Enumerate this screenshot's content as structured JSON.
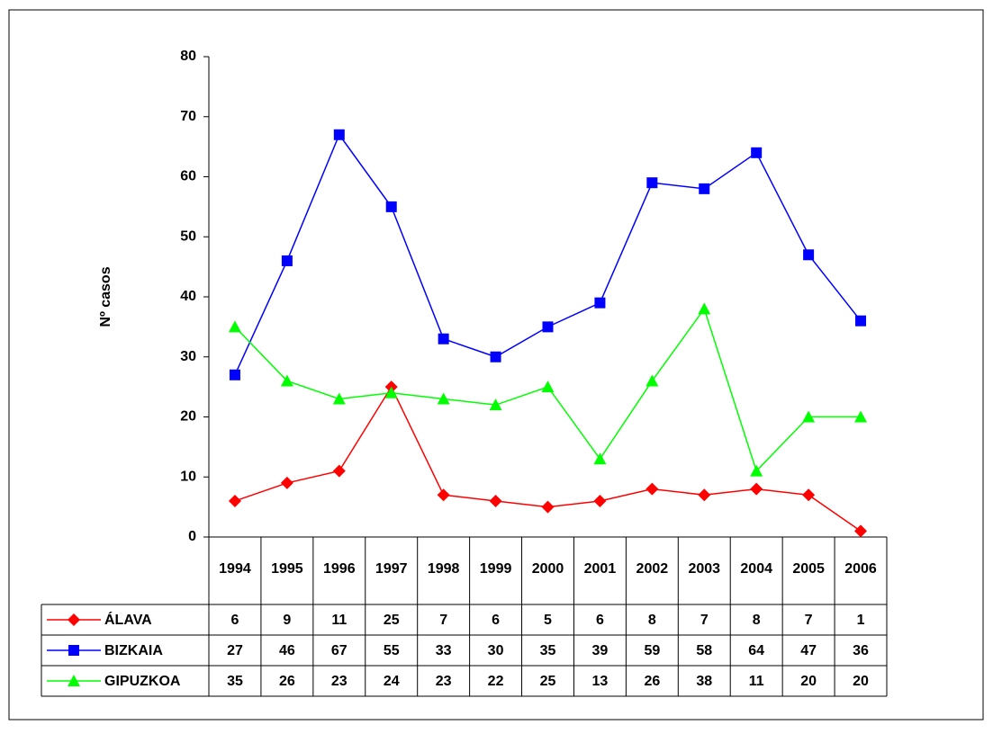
{
  "chart_data": {
    "type": "line",
    "y_label": "Nº casos",
    "categories": [
      "1994",
      "1995",
      "1996",
      "1997",
      "1998",
      "1999",
      "2000",
      "2001",
      "2002",
      "2003",
      "2004",
      "2005",
      "2006"
    ],
    "series": [
      {
        "name": "ÁLAVA",
        "color": "#ff0000",
        "marker": "diamond",
        "values": [
          6,
          9,
          11,
          25,
          7,
          6,
          5,
          6,
          8,
          7,
          8,
          7,
          1
        ]
      },
      {
        "name": "BIZKAIA",
        "color": "#0000ff",
        "marker": "square",
        "values": [
          27,
          46,
          67,
          55,
          33,
          30,
          35,
          39,
          59,
          58,
          64,
          47,
          36
        ]
      },
      {
        "name": "GIPUZKOA",
        "color": "#00ff00",
        "marker": "triangle",
        "values": [
          35,
          26,
          23,
          24,
          23,
          22,
          25,
          13,
          26,
          38,
          11,
          20,
          20
        ]
      }
    ],
    "ylim": [
      0,
      80
    ],
    "yticks": [
      0,
      10,
      20,
      30,
      40,
      50,
      60,
      70,
      80
    ]
  }
}
